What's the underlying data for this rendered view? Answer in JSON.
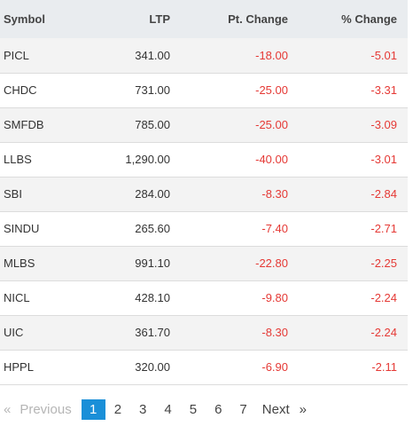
{
  "table": {
    "headers": {
      "symbol": "Symbol",
      "ltp": "LTP",
      "pt_change": "Pt. Change",
      "pct_change": "% Change"
    },
    "rows": [
      {
        "symbol": "PICL",
        "ltp": "341.00",
        "pt_change": "-18.00",
        "pct_change": "-5.01"
      },
      {
        "symbol": "CHDC",
        "ltp": "731.00",
        "pt_change": "-25.00",
        "pct_change": "-3.31"
      },
      {
        "symbol": "SMFDB",
        "ltp": "785.00",
        "pt_change": "-25.00",
        "pct_change": "-3.09"
      },
      {
        "symbol": "LLBS",
        "ltp": "1,290.00",
        "pt_change": "-40.00",
        "pct_change": "-3.01"
      },
      {
        "symbol": "SBI",
        "ltp": "284.00",
        "pt_change": "-8.30",
        "pct_change": "-2.84"
      },
      {
        "symbol": "SINDU",
        "ltp": "265.60",
        "pt_change": "-7.40",
        "pct_change": "-2.71"
      },
      {
        "symbol": "MLBS",
        "ltp": "991.10",
        "pt_change": "-22.80",
        "pct_change": "-2.25"
      },
      {
        "symbol": "NICL",
        "ltp": "428.10",
        "pt_change": "-9.80",
        "pct_change": "-2.24"
      },
      {
        "symbol": "UIC",
        "ltp": "361.70",
        "pt_change": "-8.30",
        "pct_change": "-2.24"
      },
      {
        "symbol": "HPPL",
        "ltp": "320.00",
        "pt_change": "-6.90",
        "pct_change": "-2.11"
      }
    ]
  },
  "pagination": {
    "prev_arrow": "«",
    "previous_label": "Previous",
    "pages": [
      "1",
      "2",
      "3",
      "4",
      "5",
      "6",
      "7"
    ],
    "current_page": "1",
    "next_label": "Next",
    "next_arrow": "»"
  },
  "colors": {
    "negative": "#e53935",
    "active_page": "#1a8fd8",
    "header_bg": "#e9ecef"
  }
}
